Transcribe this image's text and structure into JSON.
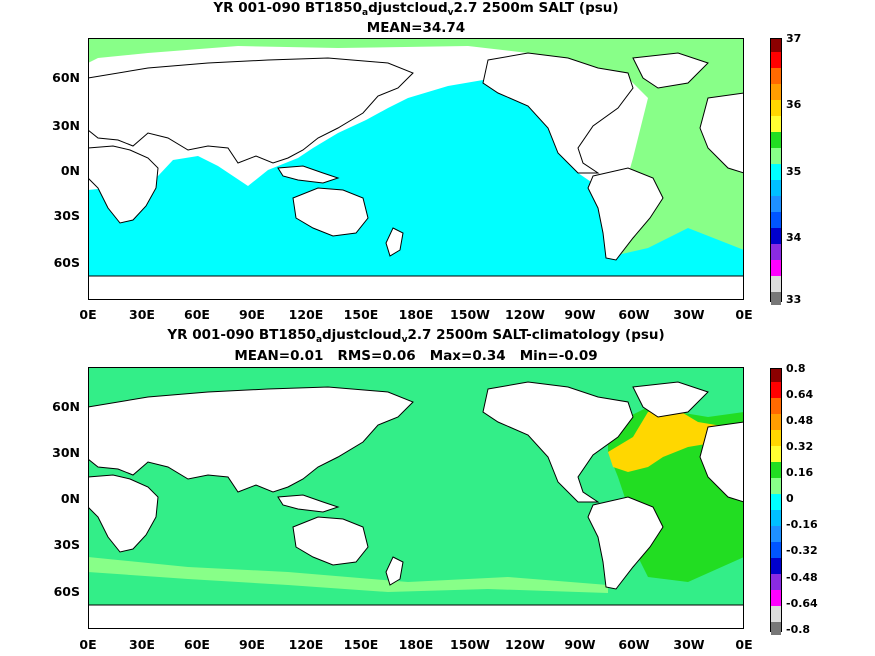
{
  "panel1": {
    "title_a": "YR 001-090 BT1850",
    "title_sub1": "a",
    "title_b": "djustcloud",
    "title_sub2": "v",
    "title_c": "2.7 2500m SALT (psu)",
    "stats": "MEAN=34.74",
    "colorbar_labels": [
      "37",
      "36",
      "35",
      "34",
      "33"
    ],
    "colorbar_colors": [
      "#8b0000",
      "#ff0000",
      "#ff6a00",
      "#ff9e00",
      "#ffd700",
      "#ffff33",
      "#22dd22",
      "#88ff88",
      "#00ffff",
      "#00bfff",
      "#1e90ff",
      "#0055ff",
      "#0000cd",
      "#8a2be2",
      "#ff00ff",
      "#dddddd",
      "#777777"
    ]
  },
  "panel2": {
    "title_a": "YR 001-090 BT1850",
    "title_sub1": "a",
    "title_b": "djustcloud",
    "title_sub2": "v",
    "title_c": "2.7 2500m SALT-climatology (psu)",
    "stats": "MEAN=0.01   RMS=0.06   Max=0.34   Min=-0.09",
    "colorbar_labels": [
      "0.8",
      "0.64",
      "0.48",
      "0.32",
      "0.16",
      "0",
      "-0.16",
      "-0.32",
      "-0.48",
      "-0.64",
      "-0.8"
    ],
    "colorbar_colors": [
      "#8b0000",
      "#ff0000",
      "#ff6a00",
      "#ff9e00",
      "#ffd700",
      "#ffff33",
      "#22dd22",
      "#88ff88",
      "#00ffff",
      "#00bfff",
      "#1e90ff",
      "#0055ff",
      "#0000cd",
      "#8a2be2",
      "#ff00ff",
      "#dddddd",
      "#777777"
    ]
  },
  "lat_labels": [
    "60N",
    "30N",
    "0N",
    "30S",
    "60S"
  ],
  "lon_labels": [
    "0E",
    "30E",
    "60E",
    "90E",
    "120E",
    "150E",
    "180E",
    "150W",
    "120W",
    "90W",
    "60W",
    "30W",
    "0E"
  ],
  "colors": {
    "ocean_main_1": "#00ffff",
    "atlantic_1": "#88ff88",
    "ocean_main_2": "#33ee88",
    "atlantic_hi_2": "#ffd700",
    "atlantic_mid_2": "#22dd22",
    "land": "#ffffff"
  }
}
